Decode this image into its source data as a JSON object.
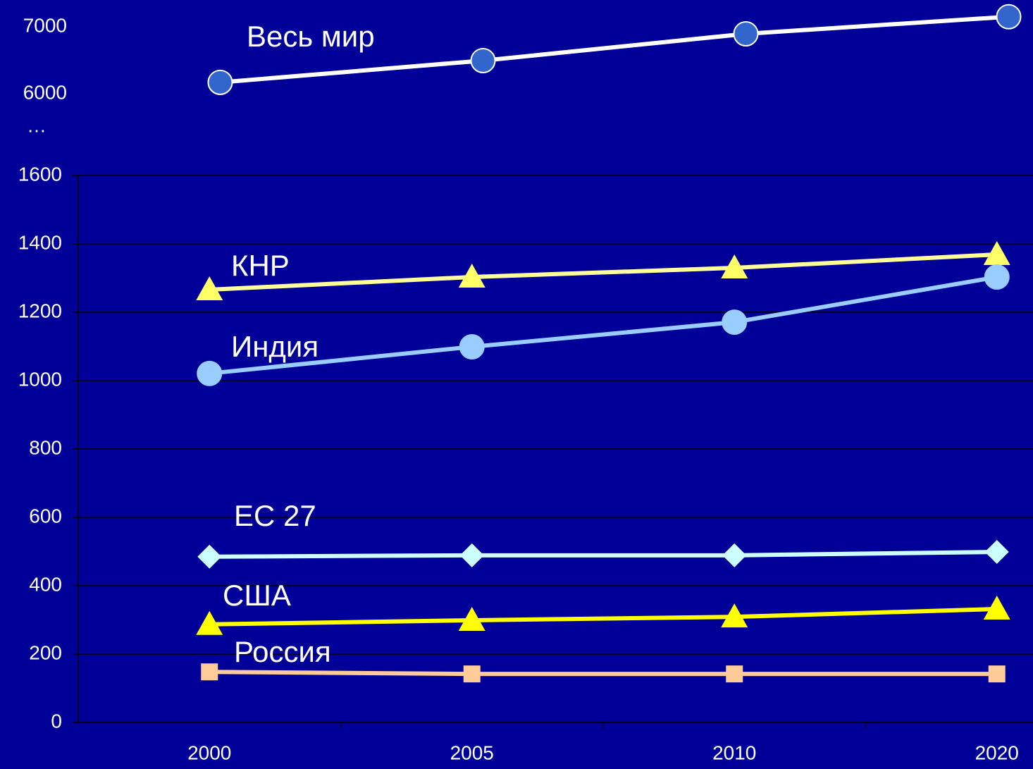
{
  "chart_data": {
    "type": "line",
    "categories": [
      "2000",
      "2005",
      "2010",
      "2020"
    ],
    "ylim": [
      0,
      1600
    ],
    "yticks": [
      0,
      200,
      400,
      600,
      800,
      1000,
      1200,
      1400,
      1600
    ],
    "y2lim": [
      5900,
      7400
    ],
    "y2ticks": [
      6000,
      7000
    ],
    "axis_break": "…",
    "grid": true,
    "series": [
      {
        "name": "Весь мир",
        "color": "#3366cc",
        "line_color": "#ffffff",
        "marker": "circle",
        "axis": "y2",
        "values": [
          6170,
          6495,
          6895,
          7150
        ]
      },
      {
        "name": "КНР",
        "color": "#ffff66",
        "line_color": "#ffff99",
        "marker": "triangle",
        "values": [
          1266,
          1303,
          1330,
          1369
        ]
      },
      {
        "name": "Индия",
        "color": "#99ccff",
        "line_color": "#99ccff",
        "marker": "circle",
        "values": [
          1021,
          1099,
          1171,
          1303
        ]
      },
      {
        "name": "ЕС 27",
        "color": "#ccffff",
        "line_color": "#ccffff",
        "marker": "diamond",
        "values": [
          485,
          489,
          489,
          499
        ]
      },
      {
        "name": "США",
        "color": "#ffff00",
        "line_color": "#ffff00",
        "marker": "triangle",
        "values": [
          287,
          299,
          309,
          332
        ]
      },
      {
        "name": "Россия",
        "color": "#ffcc99",
        "line_color": "#ffcc99",
        "marker": "square",
        "values": [
          148,
          142,
          142,
          142
        ]
      }
    ]
  }
}
